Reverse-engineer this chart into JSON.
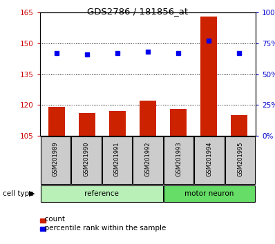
{
  "title": "GDS2786 / 181856_at",
  "samples": [
    "GSM201989",
    "GSM201990",
    "GSM201991",
    "GSM201992",
    "GSM201993",
    "GSM201994",
    "GSM201995"
  ],
  "counts": [
    119,
    116,
    117,
    122,
    118,
    163,
    115
  ],
  "percentiles": [
    67,
    66,
    67,
    68,
    67,
    77,
    67
  ],
  "ylim_left": [
    105,
    165
  ],
  "ylim_right": [
    0,
    100
  ],
  "yticks_left": [
    105,
    120,
    135,
    150,
    165
  ],
  "yticks_right": [
    0,
    25,
    50,
    75,
    100
  ],
  "bar_color": "#cc2200",
  "dot_color": "#0000ee",
  "ref_box_color": "#b8f0b8",
  "motor_box_color": "#66dd66",
  "sample_box_color": "#cccccc",
  "background_color": "#ffffff",
  "left_tick_color": "#cc0000",
  "right_tick_color": "#0000cc",
  "legend_count_color": "#cc2200",
  "legend_pct_color": "#0000ee",
  "groups": [
    {
      "label": "reference",
      "start": 0,
      "end": 4,
      "color": "#b8f0b8"
    },
    {
      "label": "motor neuron",
      "start": 4,
      "end": 7,
      "color": "#66dd66"
    }
  ]
}
